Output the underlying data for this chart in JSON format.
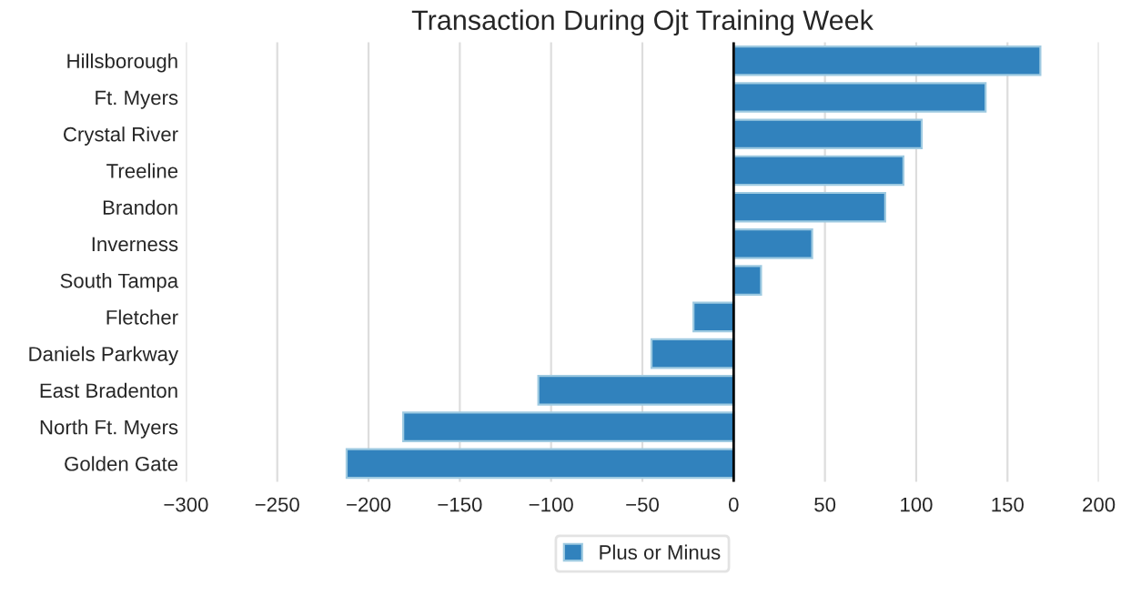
{
  "chart_data": {
    "type": "bar",
    "orientation": "horizontal",
    "title": "Transaction During Ojt Training Week",
    "categories": [
      "Hillsborough",
      "Ft. Myers",
      "Crystal River",
      "Treeline",
      "Brandon",
      "Inverness",
      "South Tampa",
      "Fletcher",
      "Daniels Parkway",
      "East Bradenton",
      "North Ft. Myers",
      "Golden Gate"
    ],
    "series": [
      {
        "name": "Plus or Minus",
        "color": "#3182bd",
        "values": [
          168,
          138,
          103,
          93,
          83,
          43,
          15,
          -22,
          -45,
          -107,
          -181,
          -212
        ]
      }
    ],
    "xlim": [
      -300,
      200
    ],
    "xticks": [
      {
        "value": -300,
        "label": "−300"
      },
      {
        "value": -250,
        "label": "−250"
      },
      {
        "value": -200,
        "label": "−200"
      },
      {
        "value": -150,
        "label": "−150"
      },
      {
        "value": -100,
        "label": "−100"
      },
      {
        "value": -50,
        "label": "−50"
      },
      0,
      50,
      100,
      150,
      200
    ],
    "grid": "x",
    "legend": "bottom"
  }
}
